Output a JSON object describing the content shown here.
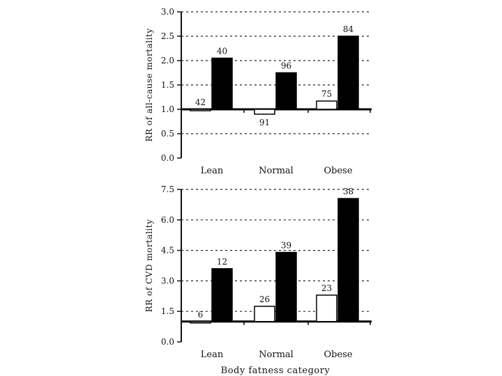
{
  "chart_data": [
    {
      "type": "bar",
      "ylabel": "RR of all-cause mortality",
      "xlabel": "",
      "categories": [
        "Lean",
        "Normal",
        "Obese"
      ],
      "ylim": [
        0.0,
        3.0
      ],
      "yticks": [
        "0.0",
        "0.5",
        "1.0",
        "1.5",
        "2.0",
        "2.5",
        "3.0"
      ],
      "baseline": 1.0,
      "grid": true,
      "legend": "none",
      "series": [
        {
          "values": [
            1.0,
            0.9,
            1.17
          ],
          "labels": [
            "42",
            "91",
            "75"
          ],
          "color": "#ffffff"
        },
        {
          "values": [
            2.05,
            1.75,
            2.5
          ],
          "labels": [
            "40",
            "96",
            "84"
          ],
          "color": "#000000"
        }
      ]
    },
    {
      "type": "bar",
      "ylabel": "RR of CVD mortality",
      "xlabel": "Body fatness category",
      "categories": [
        "Lean",
        "Normal",
        "Obese"
      ],
      "ylim": [
        0.0,
        7.5
      ],
      "yticks": [
        "0.0",
        "1.5",
        "3.0",
        "4.5",
        "6.0",
        "7.5"
      ],
      "baseline": 1.0,
      "grid": true,
      "legend": "none",
      "series": [
        {
          "values": [
            1.0,
            1.75,
            2.3
          ],
          "labels": [
            "6",
            "26",
            "23"
          ],
          "color": "#ffffff"
        },
        {
          "values": [
            3.6,
            4.4,
            7.05
          ],
          "labels": [
            "12",
            "39",
            "38"
          ],
          "color": "#000000"
        }
      ]
    }
  ]
}
